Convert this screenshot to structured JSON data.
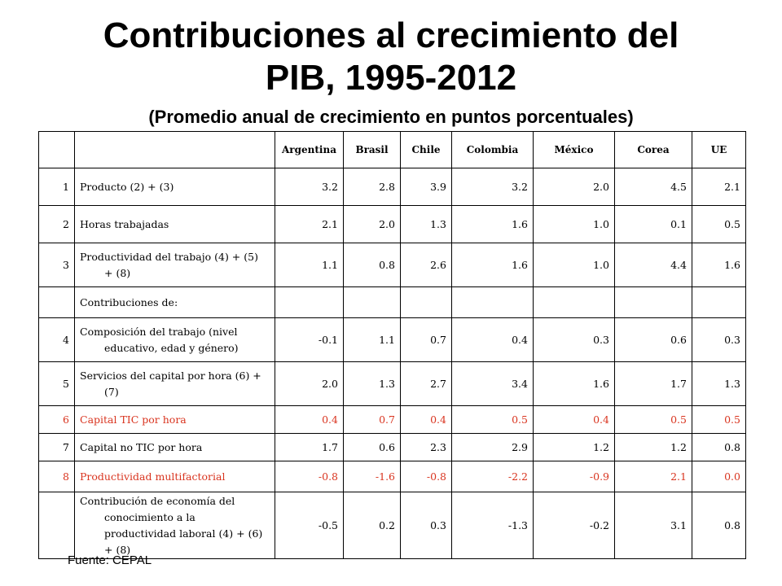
{
  "title_line1": "Contribuciones al crecimiento del",
  "title_line2": "PIB, 1995-2012",
  "subtitle": "(Promedio anual de crecimiento en puntos porcentuales)",
  "columns": [
    "Argentina",
    "Brasil",
    "Chile",
    "Colombia",
    "México",
    "Corea",
    "UE"
  ],
  "rows": [
    {
      "idx": "1",
      "label": "Producto (2) + (3)",
      "values": [
        "3.2",
        "2.8",
        "3.9",
        "3.2",
        "2.0",
        "4.5",
        "2.1"
      ],
      "highlight": false
    },
    {
      "idx": "2",
      "label": "Horas trabajadas",
      "values": [
        "2.1",
        "2.0",
        "1.3",
        "1.6",
        "1.0",
        "0.1",
        "0.5"
      ],
      "highlight": false
    },
    {
      "idx": "3",
      "label": "Productividad del trabajo (4) + (5) + (8)",
      "values": [
        "1.1",
        "0.8",
        "2.6",
        "1.6",
        "1.0",
        "4.4",
        "1.6"
      ],
      "highlight": false
    },
    {
      "idx": "",
      "label": "Contribuciones de:",
      "values": [
        "",
        "",
        "",
        "",
        "",
        "",
        ""
      ],
      "highlight": false
    },
    {
      "idx": "4",
      "label": "Composición del trabajo (nivel educativo, edad y género)",
      "values": [
        "-0.1",
        "1.1",
        "0.7",
        "0.4",
        "0.3",
        "0.6",
        "0.3"
      ],
      "highlight": false
    },
    {
      "idx": "5",
      "label": "Servicios del capital por hora (6) + (7)",
      "values": [
        "2.0",
        "1.3",
        "2.7",
        "3.4",
        "1.6",
        "1.7",
        "1.3"
      ],
      "highlight": false
    },
    {
      "idx": "6",
      "label": "Capital TIC por hora",
      "values": [
        "0.4",
        "0.7",
        "0.4",
        "0.5",
        "0.4",
        "0.5",
        "0.5"
      ],
      "highlight": true
    },
    {
      "idx": "7",
      "label": "Capital no TIC por hora",
      "values": [
        "1.7",
        "0.6",
        "2.3",
        "2.9",
        "1.2",
        "1.2",
        "0.8"
      ],
      "highlight": false
    },
    {
      "idx": "8",
      "label": "Productividad multifactorial",
      "values": [
        "-0.8",
        "-1.6",
        "-0.8",
        "-2.2",
        "-0.9",
        "2.1",
        "0.0"
      ],
      "highlight": true
    },
    {
      "idx": "",
      "label": "Contribución de economía del conocimiento a la productividad laboral (4) + (6) + (8)",
      "values": [
        "-0.5",
        "0.2",
        "0.3",
        "-1.3",
        "-0.2",
        "3.1",
        "0.8"
      ],
      "highlight": false
    }
  ],
  "source": "Fuente: CEPAL",
  "colors": {
    "highlight": "#d9341f",
    "text": "#000000",
    "border": "#000000"
  }
}
